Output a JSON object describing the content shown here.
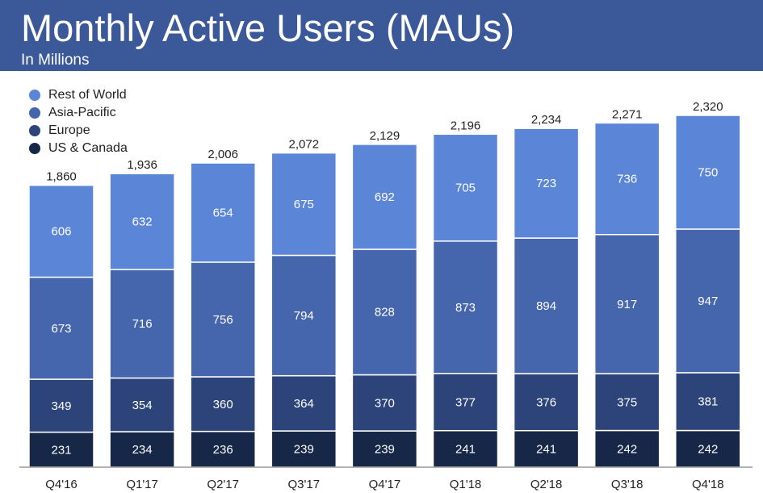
{
  "header": {
    "title": "Monthly Active Users (MAUs)",
    "subtitle": "In Millions"
  },
  "colors": {
    "banner": "#3b5998",
    "rest_of_world": "#5b86d8",
    "asia_pacific": "#4565ac",
    "europe": "#2c4479",
    "us_canada": "#172747",
    "axis": "#9a9a9a",
    "total_label": "#222222",
    "segment_label": "#ffffff"
  },
  "chart_data": {
    "type": "bar",
    "stacked": true,
    "title": "Monthly Active Users (MAUs)",
    "subtitle": "In Millions",
    "xlabel": "",
    "ylabel": "",
    "categories": [
      "Q4'16",
      "Q1'17",
      "Q2'17",
      "Q3'17",
      "Q4'17",
      "Q1'18",
      "Q2'18",
      "Q3'18",
      "Q4'18"
    ],
    "series": [
      {
        "name": "US & Canada",
        "color": "#172747",
        "values": [
          231,
          234,
          236,
          239,
          239,
          241,
          241,
          242,
          242
        ]
      },
      {
        "name": "Europe",
        "color": "#2c4479",
        "values": [
          349,
          354,
          360,
          364,
          370,
          377,
          376,
          375,
          381
        ]
      },
      {
        "name": "Asia-Pacific",
        "color": "#4565ac",
        "values": [
          673,
          716,
          756,
          794,
          828,
          873,
          894,
          917,
          947
        ]
      },
      {
        "name": "Rest of World",
        "color": "#5b86d8",
        "values": [
          606,
          632,
          654,
          675,
          692,
          705,
          723,
          736,
          750
        ]
      }
    ],
    "totals": [
      "1,860",
      "1,936",
      "2,006",
      "2,072",
      "2,129",
      "2,196",
      "2,234",
      "2,271",
      "2,320"
    ],
    "legend": {
      "placement": "top-left",
      "entries": [
        "Rest of World",
        "Asia-Pacific",
        "Europe",
        "US & Canada"
      ]
    },
    "ylim": [
      0,
      2320
    ],
    "grid": false
  }
}
